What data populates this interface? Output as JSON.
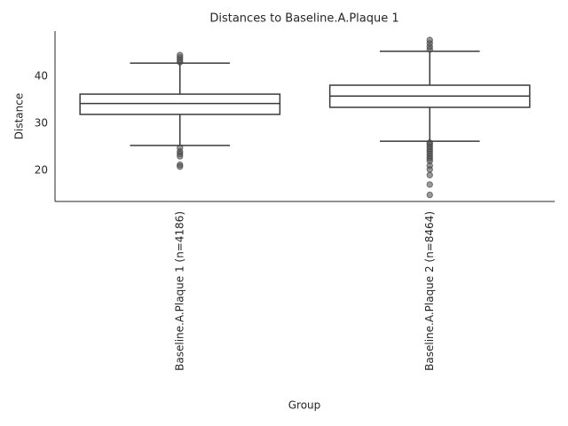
{
  "chart_data": {
    "type": "box",
    "title": "Distances to Baseline.A.Plaque 1",
    "x_label": "Group",
    "y_label": "Distance",
    "categories": [
      "Baseline.A.Plaque 1 (n=4186)",
      "Baseline.A.Plaque 2 (n=8464)"
    ],
    "boxes": [
      {
        "whislo": 25.3,
        "q1": 31.9,
        "med": 34.2,
        "q3": 36.2,
        "whishi": 42.8,
        "fliers": [
          43.0,
          43.5,
          44.0,
          44.5,
          24.8,
          24.0,
          23.5,
          23.0,
          21.2,
          20.8
        ]
      },
      {
        "whislo": 26.2,
        "q1": 33.4,
        "med": 35.8,
        "q3": 38.1,
        "whishi": 45.3,
        "fliers": [
          45.7,
          46.3,
          47.0,
          47.7,
          25.9,
          25.5,
          25.0,
          24.5,
          24.0,
          23.5,
          23.0,
          22.5,
          22.0,
          21.0,
          20.2,
          19.0,
          17.0,
          14.8
        ]
      }
    ],
    "color": "#ffffff",
    "line_color": "#3a3a3a",
    "flier_color": "#555555",
    "ylim": [
      13.4,
      49.6
    ],
    "yticks": [
      20,
      30,
      40
    ],
    "grid": false
  }
}
